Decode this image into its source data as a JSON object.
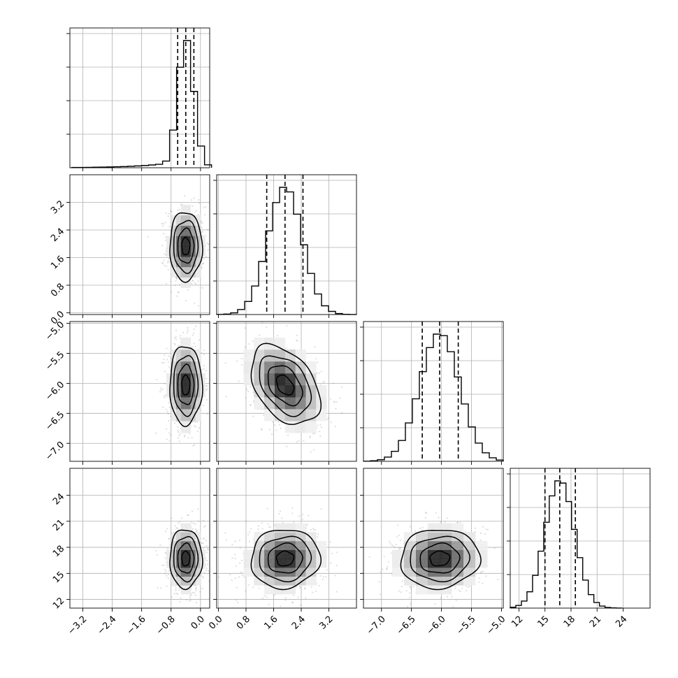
{
  "chart_data": {
    "type": "corner",
    "parameters": 4,
    "axes_ticks": [
      [
        "-3.2",
        "-2.4",
        "-1.6",
        "-0.8",
        "0.0"
      ],
      [
        "0.0",
        "0.8",
        "1.6",
        "2.4",
        "3.2"
      ],
      [
        "-7.0",
        "-6.5",
        "-6.0",
        "-5.5",
        "-5.0"
      ],
      [
        "12",
        "15",
        "18",
        "21",
        "24"
      ]
    ],
    "ranges": [
      [
        -3.55,
        0.25
      ],
      [
        -0.05,
        4.0
      ],
      [
        -7.3,
        -4.97
      ],
      [
        11.0,
        27.1
      ]
    ],
    "quantiles": [
      [
        -0.62,
        -0.4,
        -0.18
      ],
      [
        1.4,
        1.93,
        2.45
      ],
      [
        -6.32,
        -6.03,
        -5.72
      ],
      [
        15.0,
        16.7,
        18.5
      ]
    ],
    "means": [
      -0.4,
      1.93,
      -6.03,
      16.7
    ],
    "sds": [
      0.22,
      0.5,
      0.33,
      1.7
    ],
    "correlations": [
      [
        0,
        1,
        0.0
      ],
      [
        0,
        2,
        0.0
      ],
      [
        0,
        3,
        0.0
      ],
      [
        1,
        2,
        -0.4
      ],
      [
        1,
        3,
        0.05
      ],
      [
        2,
        3,
        0.05
      ]
    ],
    "histogram_bins": 20,
    "grid": true,
    "contour_levels": 3
  }
}
